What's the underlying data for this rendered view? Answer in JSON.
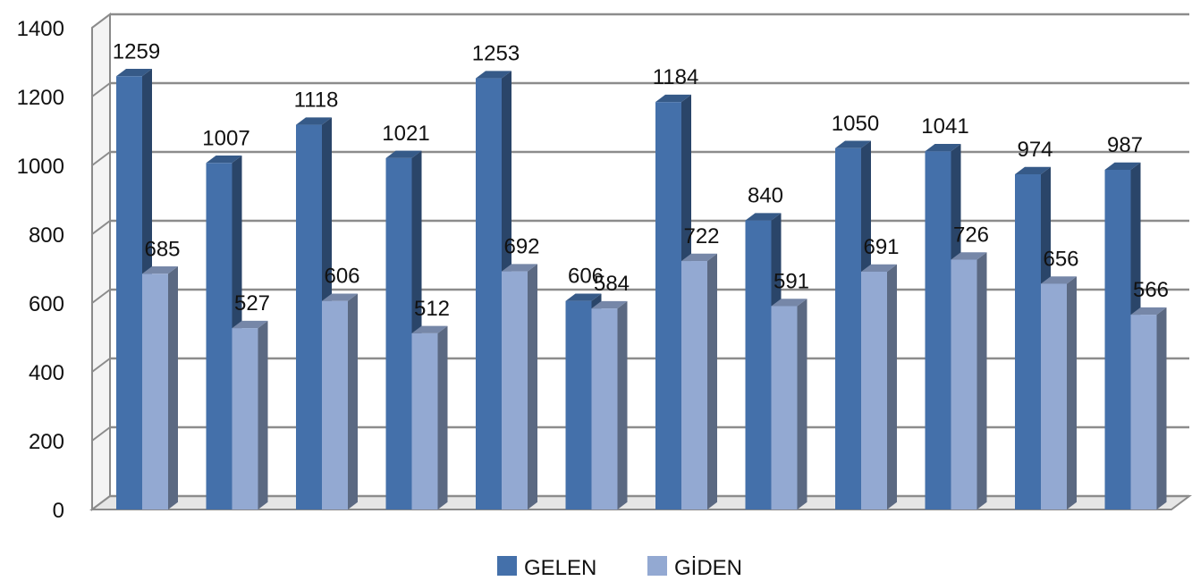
{
  "chart_data": {
    "type": "bar",
    "title": "",
    "xlabel": "",
    "ylabel": "",
    "ylim": [
      0,
      1400
    ],
    "ytick_step": 200,
    "yticks": [
      "0",
      "200",
      "400",
      "600",
      "800",
      "1000",
      "1200",
      "1400"
    ],
    "grid": true,
    "three_d": true,
    "legend_position": "bottom",
    "categories": [
      "",
      "",
      "",
      "",
      "",
      "",
      "",
      "",
      "",
      "",
      "",
      ""
    ],
    "series": [
      {
        "name": "GELEN",
        "color": "#4470AA",
        "values": [
          1259,
          1007,
          1118,
          1021,
          1253,
          606,
          1184,
          840,
          1050,
          1041,
          974,
          987
        ]
      },
      {
        "name": "GİDEN",
        "color": "#93A9D2",
        "values": [
          685,
          527,
          606,
          512,
          692,
          584,
          722,
          591,
          691,
          726,
          656,
          566
        ]
      }
    ]
  }
}
